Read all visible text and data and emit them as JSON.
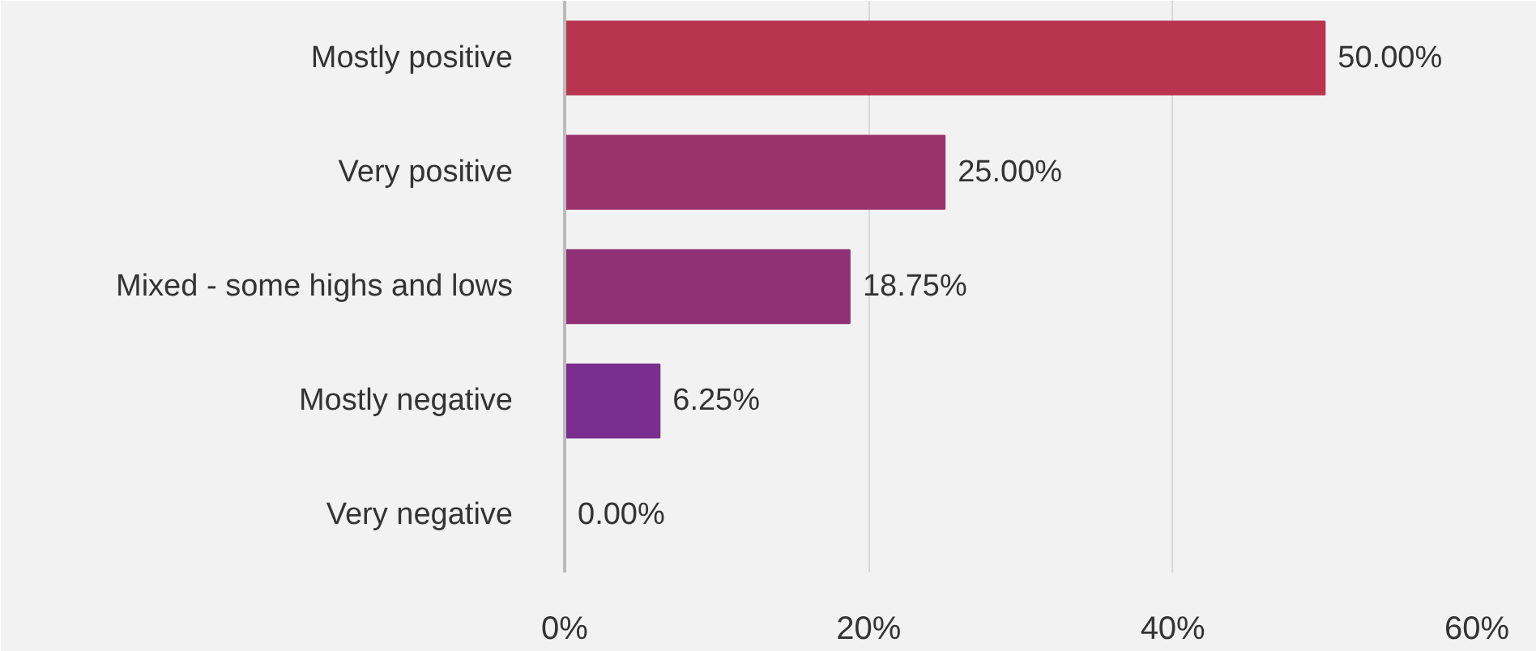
{
  "chart_data": {
    "type": "bar",
    "orientation": "horizontal",
    "categories": [
      "Mostly positive",
      "Very positive",
      "Mixed - some highs and lows",
      "Mostly negative",
      "Very negative"
    ],
    "values": [
      50,
      25,
      18.75,
      6.25,
      0
    ],
    "colors": [
      "#b8344f",
      "#9a326c",
      "#903176",
      "#7a2f8e",
      "#6e2f9e"
    ],
    "value_labels": [
      "50.00%",
      "25.00%",
      "18.75%",
      "6.25%",
      "0.00%"
    ],
    "xlim": [
      0,
      60
    ],
    "xticks": [
      {
        "value": 0,
        "label": "0%"
      },
      {
        "value": 20,
        "label": "20%"
      },
      {
        "value": 40,
        "label": "40%"
      },
      {
        "value": 60,
        "label": "60%"
      }
    ],
    "grid": "x"
  }
}
